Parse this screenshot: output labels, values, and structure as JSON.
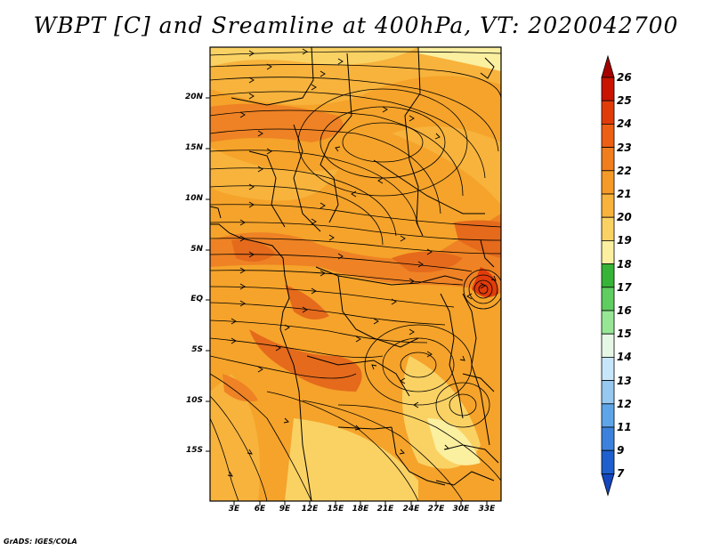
{
  "title": "WBPT [C] and Sreamline at 400hPa, VT: 2020042700",
  "credit": "GrADS: IGES/COLA",
  "map": {
    "lat_labels": [
      "20N",
      "15N",
      "10N",
      "5N",
      "EQ",
      "5S",
      "10S",
      "15S"
    ],
    "lon_labels": [
      "3E",
      "6E",
      "9E",
      "12E",
      "15E",
      "18E",
      "21E",
      "24E",
      "27E",
      "30E",
      "33E"
    ]
  },
  "colorbar": {
    "labels": [
      "26",
      "25",
      "24",
      "23",
      "22",
      "21",
      "20",
      "19",
      "18",
      "17",
      "16",
      "15",
      "14",
      "13",
      "12",
      "11",
      "9",
      "7"
    ],
    "colors": [
      "#a50000",
      "#c81400",
      "#e03c0a",
      "#ec5f14",
      "#f07d1e",
      "#f59a28",
      "#f7b33c",
      "#fad264",
      "#fbefa0",
      "#37b437",
      "#5fcd5f",
      "#96e696",
      "#e6f7e6",
      "#c8e6fa",
      "#96c8f0",
      "#5ea5e8",
      "#3c82dc",
      "#1e5fcd",
      "#1446be"
    ]
  },
  "colors": {
    "base_field": "#f5a32a",
    "warm_band": "#ee8224",
    "hot_spot": "#e56a1c",
    "cool_patch": "#fbd368"
  }
}
